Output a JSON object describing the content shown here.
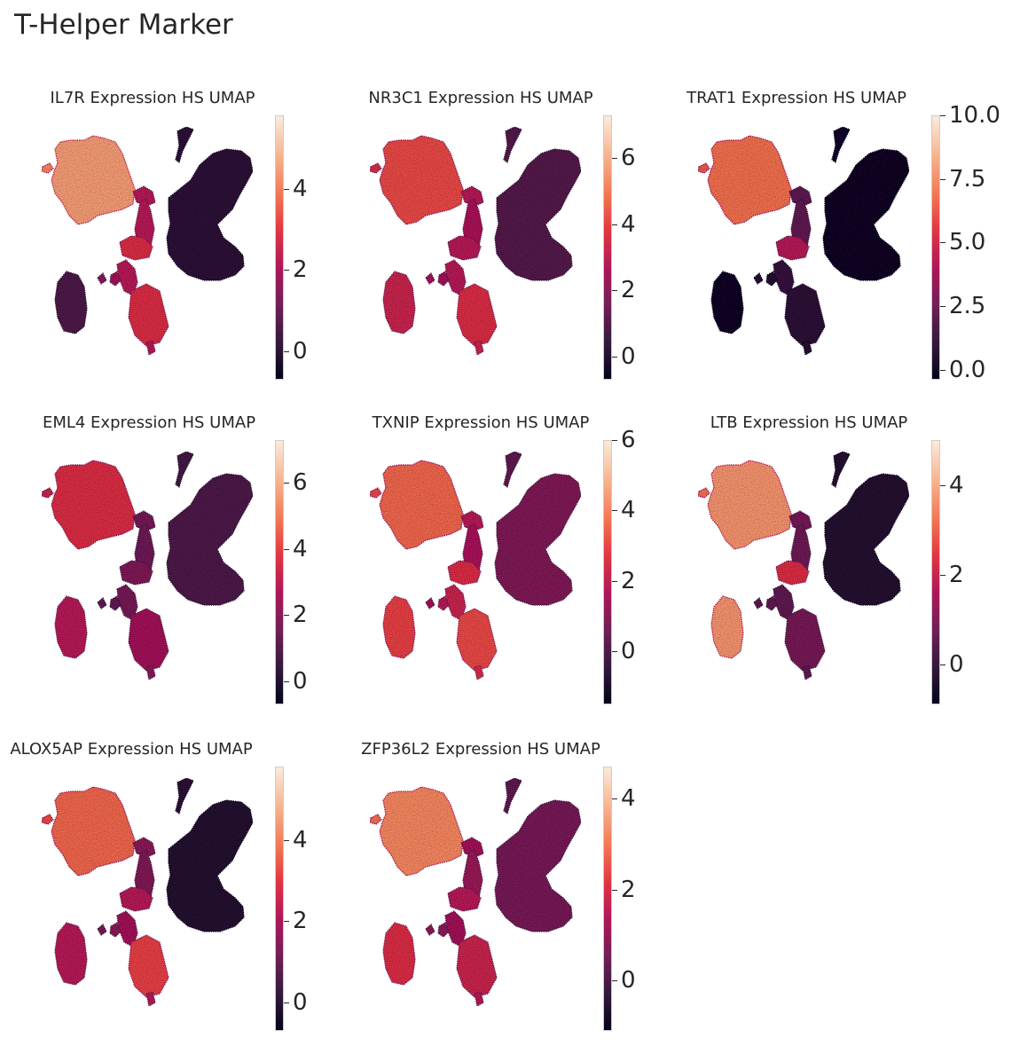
{
  "title": "T-Helper Marker",
  "colormap": [
    "#03051a",
    "#35193e",
    "#701f57",
    "#ad1759",
    "#e13342",
    "#f37651",
    "#f6b48f",
    "#faebdd"
  ],
  "chart_data": [
    {
      "type": "scatter",
      "title": "IL7R Expression HS UMAP",
      "colorbar": {
        "ticks": [
          "0",
          "2",
          "4"
        ],
        "tick_values": [
          0,
          2,
          4
        ],
        "range": [
          -0.7,
          5.8
        ]
      }
    },
    {
      "type": "scatter",
      "title": "NR3C1 Expression HS UMAP",
      "colorbar": {
        "ticks": [
          "0",
          "2",
          "4",
          "6"
        ],
        "tick_values": [
          0,
          2,
          4,
          6
        ],
        "range": [
          -0.7,
          7.3
        ]
      }
    },
    {
      "type": "scatter",
      "title": "TRAT1 Expression HS UMAP",
      "colorbar": {
        "ticks": [
          "0.0",
          "2.5",
          "5.0",
          "7.5",
          "10.0"
        ],
        "tick_values": [
          0,
          2.5,
          5,
          7.5,
          10
        ],
        "range": [
          -0.4,
          10
        ]
      }
    },
    {
      "type": "scatter",
      "title": "EML4 Expression HS UMAP",
      "colorbar": {
        "ticks": [
          "0",
          "2",
          "4",
          "6"
        ],
        "tick_values": [
          0,
          2,
          4,
          6
        ],
        "range": [
          -0.7,
          7.3
        ]
      }
    },
    {
      "type": "scatter",
      "title": "TXNIP Expression HS UMAP",
      "colorbar": {
        "ticks": [
          "0",
          "2",
          "4",
          "6"
        ],
        "tick_values": [
          0,
          2,
          4,
          6
        ],
        "range": [
          -1.5,
          6
        ]
      }
    },
    {
      "type": "scatter",
      "title": "LTB Expression HS UMAP",
      "colorbar": {
        "ticks": [
          "0",
          "2",
          "4"
        ],
        "tick_values": [
          0,
          2,
          4
        ],
        "range": [
          -0.9,
          5
        ]
      }
    },
    {
      "type": "scatter",
      "title": "ALOX5AP Expression HS UMAP",
      "colorbar": {
        "ticks": [
          "0",
          "2",
          "4"
        ],
        "tick_values": [
          0,
          2,
          4
        ],
        "range": [
          -0.7,
          5.8
        ]
      }
    },
    {
      "type": "scatter",
      "title": "ZFP36L2 Expression HS UMAP",
      "colorbar": {
        "ticks": [
          "0",
          "2",
          "4"
        ],
        "tick_values": [
          0,
          2,
          4
        ],
        "range": [
          -1.1,
          4.7
        ]
      }
    }
  ]
}
